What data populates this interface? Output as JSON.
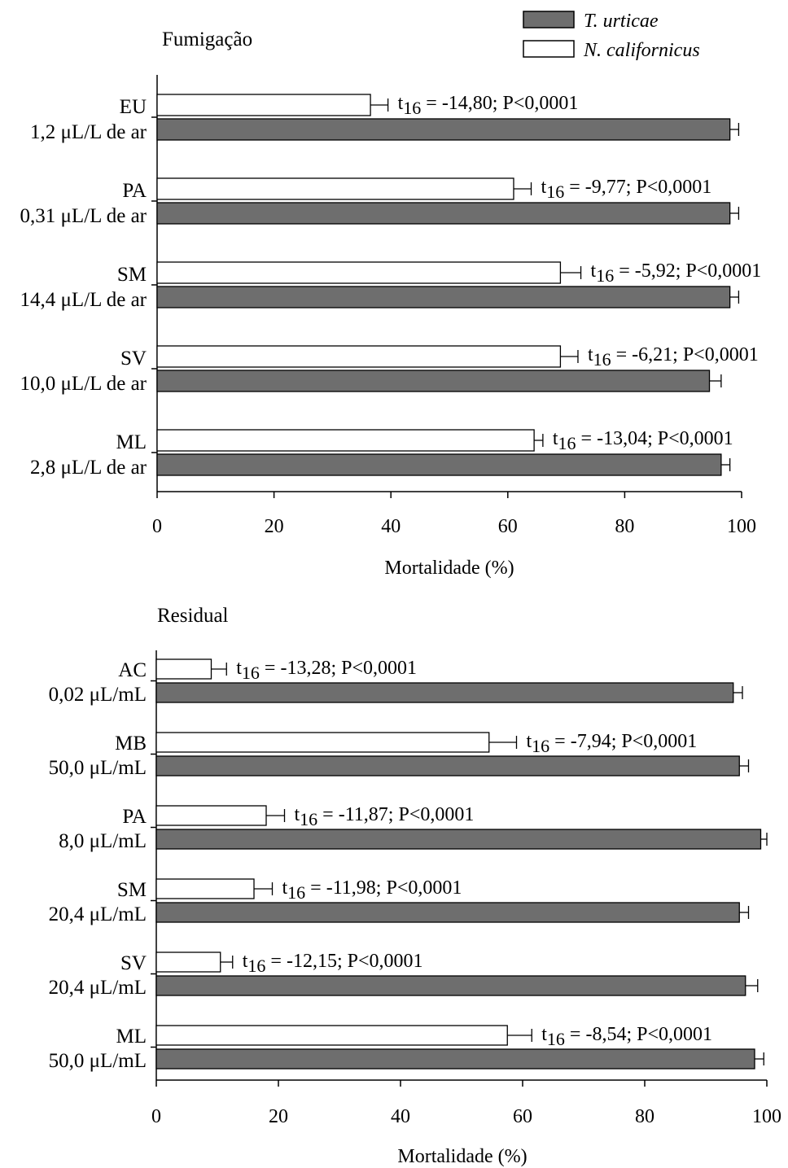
{
  "legend": {
    "series": [
      {
        "name": "T. urticae",
        "color": "#6e6e6e"
      },
      {
        "name": "N. californicus",
        "color": "#ffffff"
      }
    ]
  },
  "chart_data": [
    {
      "type": "bar",
      "orientation": "horizontal",
      "title": "Fumigação",
      "xlabel": "Mortalidade (%)",
      "xlim": [
        0,
        100
      ],
      "xticks": [
        0,
        20,
        40,
        60,
        80,
        100
      ],
      "categories": [
        {
          "code": "EU",
          "dose": "1,2 μL/L de ar"
        },
        {
          "code": "PA",
          "dose": "0,31 μL/L de ar"
        },
        {
          "code": "SM",
          "dose": "14,4 μL/L de ar"
        },
        {
          "code": "SV",
          "dose": "10,0 μL/L de ar"
        },
        {
          "code": "ML",
          "dose": "2,8 μL/L de ar"
        }
      ],
      "series": [
        {
          "name": "N. californicus",
          "values": [
            36.5,
            61,
            69,
            69,
            64.5
          ],
          "errors": [
            3,
            3,
            3.5,
            3,
            1.5
          ]
        },
        {
          "name": "T. urticae",
          "values": [
            98,
            98,
            98,
            94.5,
            96.5
          ],
          "errors": [
            1.5,
            1.5,
            1.5,
            2,
            1.5
          ]
        }
      ],
      "annotations": [
        {
          "sub": "16",
          "text": " = -14,80; P<0,0001"
        },
        {
          "sub": "16",
          "text": " = -9,77; P<0,0001"
        },
        {
          "sub": "16",
          "text": " = -5,92; P<0,0001"
        },
        {
          "sub": "16",
          "text": " = -6,21; P<0,0001"
        },
        {
          "sub": "16",
          "text": " = -13,04; P<0,0001"
        }
      ]
    },
    {
      "type": "bar",
      "orientation": "horizontal",
      "title": "Residual",
      "xlabel": "Mortalidade (%)",
      "xlim": [
        0,
        100
      ],
      "xticks": [
        0,
        20,
        40,
        60,
        80,
        100
      ],
      "categories": [
        {
          "code": "AC",
          "dose": "0,02 μL/mL"
        },
        {
          "code": "MB",
          "dose": "50,0 μL/mL"
        },
        {
          "code": "PA",
          "dose": "8,0 μL/mL"
        },
        {
          "code": "SM",
          "dose": "20,4 μL/mL"
        },
        {
          "code": "SV",
          "dose": "20,4 μL/mL"
        },
        {
          "code": "ML",
          "dose": "50,0 μL/mL"
        }
      ],
      "series": [
        {
          "name": "N. californicus",
          "values": [
            9,
            54.5,
            18,
            16,
            10.5,
            57.5
          ],
          "errors": [
            2.5,
            4.5,
            3,
            3,
            2,
            4
          ]
        },
        {
          "name": "T. urticae",
          "values": [
            94.5,
            95.5,
            99,
            95.5,
            96.5,
            98
          ],
          "errors": [
            1.5,
            1.5,
            1,
            1.5,
            2,
            1.5
          ]
        }
      ],
      "annotations": [
        {
          "sub": "16",
          "text": " = -13,28; P<0,0001"
        },
        {
          "sub": "16",
          "text": " = -7,94; P<0,0001"
        },
        {
          "sub": "16",
          "text": " = -11,87; P<0,0001"
        },
        {
          "sub": "16",
          "text": " = -11,98; P<0,0001"
        },
        {
          "sub": "16",
          "text": " = -12,15; P<0,0001"
        },
        {
          "sub": "16",
          "text": " = -8,54; P<0,0001"
        }
      ]
    }
  ]
}
